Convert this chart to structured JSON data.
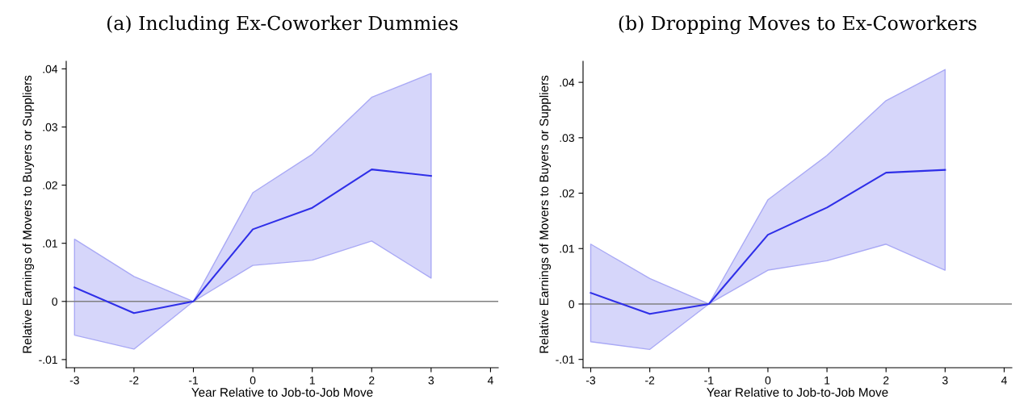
{
  "chart_data": [
    {
      "type": "line",
      "title": "(a) Including Ex-Coworker Dummies",
      "xlabel": "Year Relative to Job-to-Job Move",
      "ylabel": "Relative Earnings of Movers to Buyers or Suppliers",
      "x": [
        -3,
        -2,
        -1,
        0,
        1,
        2,
        3
      ],
      "series": [
        {
          "color": "#2f2fe8",
          "values": [
            0.0024,
            -0.002,
            0,
            0.0124,
            0.0161,
            0.0227,
            0.0216
          ],
          "lower": [
            -0.0058,
            -0.0082,
            0,
            0.0062,
            0.0071,
            0.0104,
            0.004
          ],
          "upper": [
            0.0107,
            0.0043,
            0,
            0.0187,
            0.0253,
            0.0351,
            0.0392
          ]
        }
      ],
      "xlim": [
        -3.14,
        4.13
      ],
      "xticks": [
        -3,
        -2,
        -1,
        0,
        1,
        2,
        3,
        4
      ],
      "ylim": [
        -0.0114,
        0.0413
      ],
      "yticks": [
        {
          "value": -0.01,
          "label": "-.01"
        },
        0,
        {
          "value": 0.01,
          "label": ".01"
        },
        {
          "value": 0.02,
          "label": ".02"
        },
        {
          "value": 0.03,
          "label": ".03"
        },
        {
          "value": 0.04,
          "label": ".04"
        }
      ],
      "ref_lines": [
        {
          "axis": "y",
          "value": 0,
          "color": "#808080"
        }
      ],
      "grid": false,
      "legend": false
    },
    {
      "type": "line",
      "title": "(b) Dropping Moves to Ex-Coworkers",
      "xlabel": "Year Relative to Job-to-Job Move",
      "ylabel": "Relative Earnings of Movers to Buyers or Suppliers",
      "x": [
        -3,
        -2,
        -1,
        0,
        1,
        2,
        3
      ],
      "series": [
        {
          "color": "#2f2fe8",
          "values": [
            0.002,
            -0.0018,
            0,
            0.0125,
            0.0174,
            0.0237,
            0.0242
          ],
          "lower": [
            -0.0068,
            -0.0082,
            0,
            0.0061,
            0.0078,
            0.0108,
            0.0061
          ],
          "upper": [
            0.0108,
            0.0046,
            0,
            0.0188,
            0.0268,
            0.0367,
            0.0423
          ]
        }
      ],
      "xlim": [
        -3.13,
        4.13
      ],
      "xticks": [
        -3,
        -2,
        -1,
        0,
        1,
        2,
        3,
        4
      ],
      "ylim": [
        -0.0115,
        0.0438
      ],
      "yticks": [
        {
          "value": -0.01,
          "label": "-.01"
        },
        0,
        {
          "value": 0.01,
          "label": ".01"
        },
        {
          "value": 0.02,
          "label": ".02"
        },
        {
          "value": 0.03,
          "label": ".03"
        },
        {
          "value": 0.04,
          "label": ".04"
        }
      ],
      "ref_lines": [
        {
          "axis": "y",
          "value": 0,
          "color": "#808080"
        }
      ],
      "grid": false,
      "legend": false
    }
  ]
}
